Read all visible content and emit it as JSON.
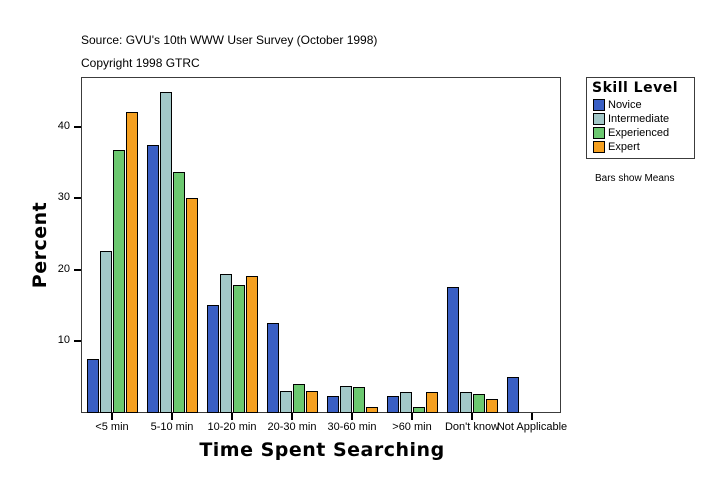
{
  "header": {
    "source": "Source: GVU's 10th WWW User Survey (October 1998)",
    "copyright": "Copyright 1998 GTRC"
  },
  "legend": {
    "title": "Skill Level",
    "items": [
      {
        "label": "Novice",
        "color": "#3a5fc4"
      },
      {
        "label": "Intermediate",
        "color": "#a2c8c8"
      },
      {
        "label": "Experienced",
        "color": "#6cc870"
      },
      {
        "label": "Expert",
        "color": "#f5a020"
      }
    ]
  },
  "note": "Bars show Means",
  "chart_data": {
    "type": "bar",
    "title": "",
    "xlabel": "Time Spent Searching",
    "ylabel": "Percent",
    "ylim": [
      0,
      46.5
    ],
    "yticks": [
      10,
      20,
      30,
      40
    ],
    "grid": false,
    "legend_position": "right",
    "legend_title": "Skill Level",
    "categories": [
      "<5 min",
      "5-10 min",
      "10-20 min",
      "20-30 min",
      "30-60 min",
      ">60 min",
      "Don't know",
      "Not Applicable"
    ],
    "series": [
      {
        "name": "Novice",
        "color": "#3a5fc4",
        "values": [
          7.5,
          37.4,
          15.1,
          12.6,
          2.4,
          2.4,
          17.6,
          5.0
        ]
      },
      {
        "name": "Intermediate",
        "color": "#a2c8c8",
        "values": [
          22.6,
          44.9,
          19.4,
          3.1,
          3.8,
          2.9,
          3.0,
          0
        ]
      },
      {
        "name": "Experienced",
        "color": "#6cc870",
        "values": [
          36.8,
          33.6,
          17.9,
          4.1,
          3.6,
          0.9,
          2.7,
          0
        ]
      },
      {
        "name": "Expert",
        "color": "#f5a020",
        "values": [
          42.0,
          30.0,
          19.1,
          3.1,
          0.9,
          2.9,
          1.9,
          0
        ]
      }
    ],
    "annotations": [
      "Bars show Means"
    ]
  }
}
